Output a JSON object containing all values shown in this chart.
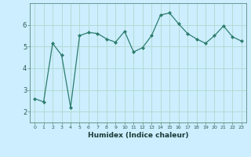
{
  "x": [
    0,
    1,
    2,
    3,
    4,
    5,
    6,
    7,
    8,
    9,
    10,
    11,
    12,
    13,
    14,
    15,
    16,
    17,
    18,
    19,
    20,
    21,
    22,
    23
  ],
  "y": [
    2.6,
    2.45,
    5.15,
    4.6,
    2.2,
    5.5,
    5.65,
    5.6,
    5.35,
    5.2,
    5.7,
    4.75,
    4.95,
    5.5,
    6.45,
    6.55,
    6.05,
    5.6,
    5.35,
    5.15,
    5.5,
    5.95,
    5.45,
    5.25
  ],
  "line_color": "#2d7d6e",
  "marker": "D",
  "marker_size": 2,
  "bg_color": "#cceeff",
  "grid_color": "#b0d8cc",
  "xlabel": "Humidex (Indice chaleur)",
  "xlim": [
    -0.5,
    23.5
  ],
  "ylim": [
    1.5,
    7.0
  ],
  "yticks": [
    2,
    3,
    4,
    5,
    6
  ],
  "xticks": [
    0,
    1,
    2,
    3,
    4,
    5,
    6,
    7,
    8,
    9,
    10,
    11,
    12,
    13,
    14,
    15,
    16,
    17,
    18,
    19,
    20,
    21,
    22,
    23
  ]
}
